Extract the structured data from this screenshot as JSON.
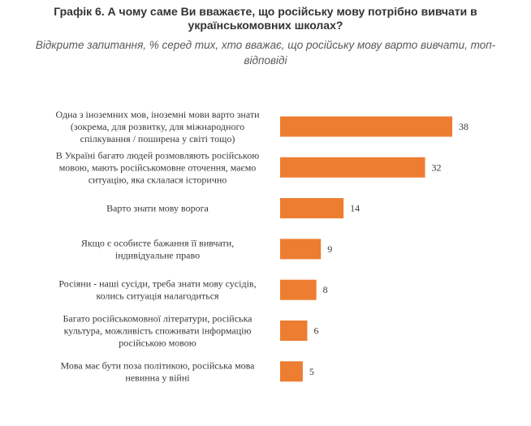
{
  "header": {
    "title_line1": "Графік 6. А чому саме Ви вважаєте, що російську мову потрібно вивчати в",
    "title_line2": "українськомовних школах?",
    "subtitle_line1": "Відкрите запитання, % серед тих, хто вважає, що російську мову варто вивчати, топ-",
    "subtitle_line2": "відповіді"
  },
  "chart_data": {
    "type": "bar",
    "orientation": "horizontal",
    "categories": [
      [
        "Одна з іноземних мов, іноземні мови варто знати",
        "(зокрема, для розвитку, для міжнародного",
        "спілкування / поширена у світі тощо)"
      ],
      [
        "В Україні багато людей розмовляють російською",
        "мовою, мають російськомовне оточення, маємо",
        "ситуацію, яка склалася історично"
      ],
      [
        "Варто знати мову ворога"
      ],
      [
        "Якщо є особисте бажання її вивчати,",
        "індивідуальне право"
      ],
      [
        "Росіяни - наші сусіди, треба знати мову сусідів,",
        "колись ситуація налагодиться"
      ],
      [
        "Багато російськомовної літератури, російська",
        "культура, можливість споживати інформацію",
        "російською мовою"
      ],
      [
        "Мова має бути поза політикою, російська мова",
        "невинна у війні"
      ]
    ],
    "values": [
      38,
      32,
      14,
      9,
      8,
      6,
      5
    ],
    "bar_color": "#ED7D31",
    "grid": false,
    "legend": "none"
  }
}
